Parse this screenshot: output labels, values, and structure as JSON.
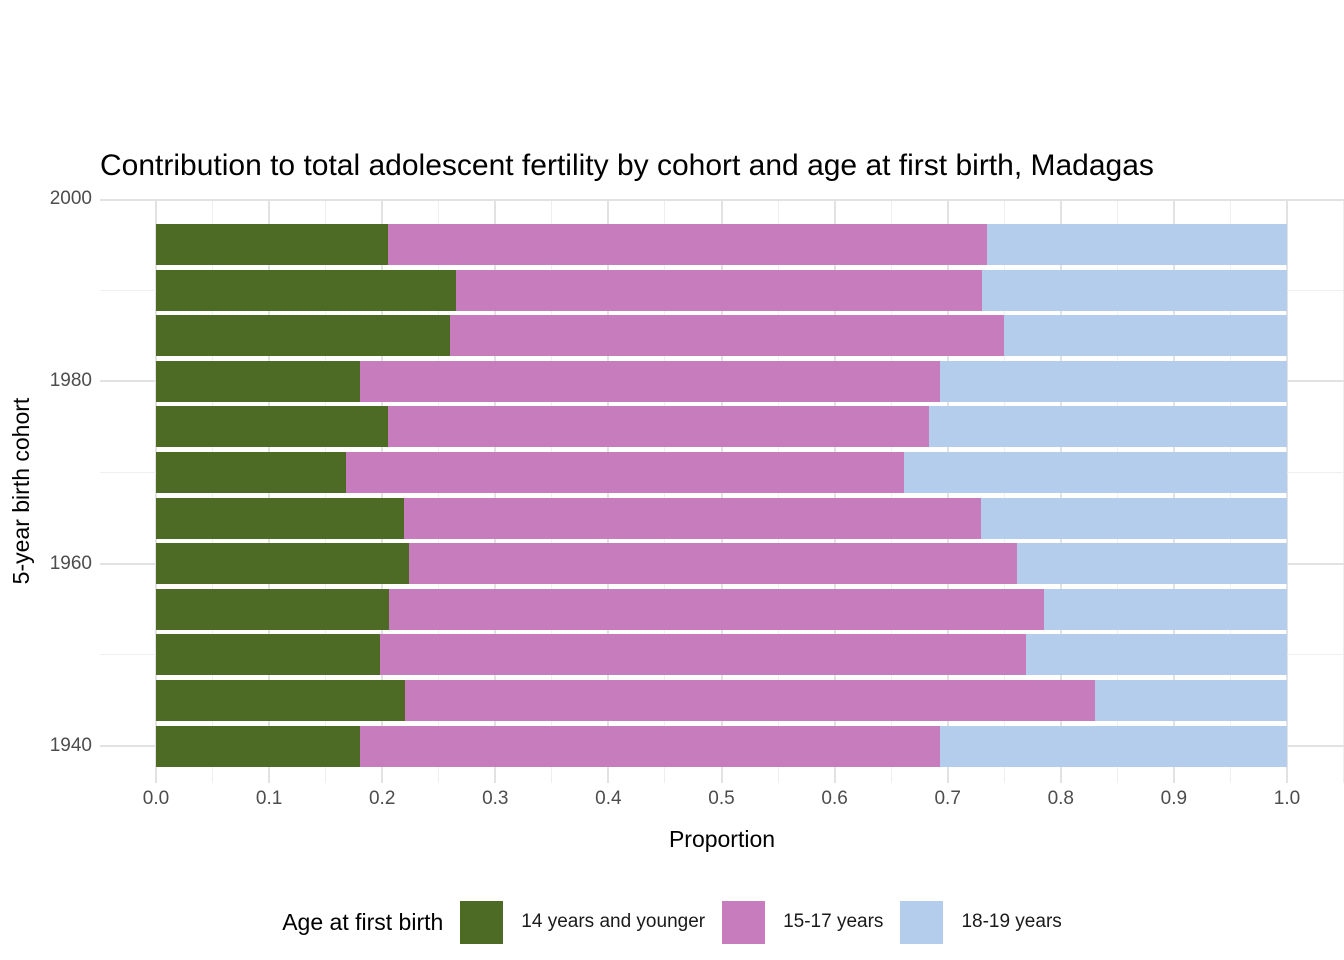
{
  "chart_data": {
    "type": "bar",
    "orientation": "horizontal-stacked",
    "title": "Contribution to total adolescent fertility by cohort and age at first birth,  Madagas",
    "xlabel": "Proportion",
    "ylabel": "5-year birth cohort",
    "xlim": [
      0,
      1
    ],
    "ylim": [
      1934,
      2000
    ],
    "grid": "on",
    "legend_position": "bottom",
    "legend": {
      "title": "Age at first birth",
      "entries": [
        "14 years and younger",
        "15-17 years",
        "18-19 years"
      ]
    },
    "series_colors": [
      "#4d6b24",
      "#c77cbd",
      "#b5cdec"
    ],
    "categories": [
      1995,
      1990,
      1985,
      1980,
      1975,
      1970,
      1965,
      1960,
      1955,
      1950,
      1945,
      1940
    ],
    "series": [
      {
        "name": "14 years and younger",
        "values": [
          0.205,
          0.265,
          0.26,
          0.18,
          0.205,
          0.168,
          0.219,
          0.224,
          0.206,
          0.198,
          0.22,
          0.18
        ]
      },
      {
        "name": "15-17 years",
        "values": [
          0.53,
          0.465,
          0.49,
          0.513,
          0.478,
          0.493,
          0.51,
          0.538,
          0.579,
          0.571,
          0.61,
          0.513
        ]
      },
      {
        "name": "18-19 years",
        "values": [
          0.265,
          0.27,
          0.25,
          0.307,
          0.317,
          0.339,
          0.271,
          0.238,
          0.215,
          0.231,
          0.17,
          0.307
        ]
      }
    ],
    "x_ticks": {
      "values": [
        0.0,
        0.1,
        0.2,
        0.3,
        0.4,
        0.5,
        0.6,
        0.7,
        0.8,
        0.9,
        1.0
      ],
      "labels": [
        "0.0",
        "0.1",
        "0.2",
        "0.3",
        "0.4",
        "0.5",
        "0.6",
        "0.7",
        "0.8",
        "0.9",
        "1.0"
      ]
    },
    "x_minor_ticks": [
      -0.05,
      0.05,
      0.15,
      0.25,
      0.35,
      0.45,
      0.55,
      0.65,
      0.75,
      0.85,
      0.95,
      1.05
    ],
    "y_ticks": {
      "values": [
        2000,
        1980,
        1960,
        1940
      ],
      "labels": [
        "2000",
        "1980",
        "1960",
        "1940"
      ]
    },
    "y_minor_ticks": [
      1990,
      1970,
      1950
    ],
    "colors": {
      "background": "#ffffff",
      "grid_major": "#e2e2e2",
      "grid_minor": "#efefef",
      "axis_text": "#4d4d4d",
      "title_text": "#000000"
    }
  }
}
